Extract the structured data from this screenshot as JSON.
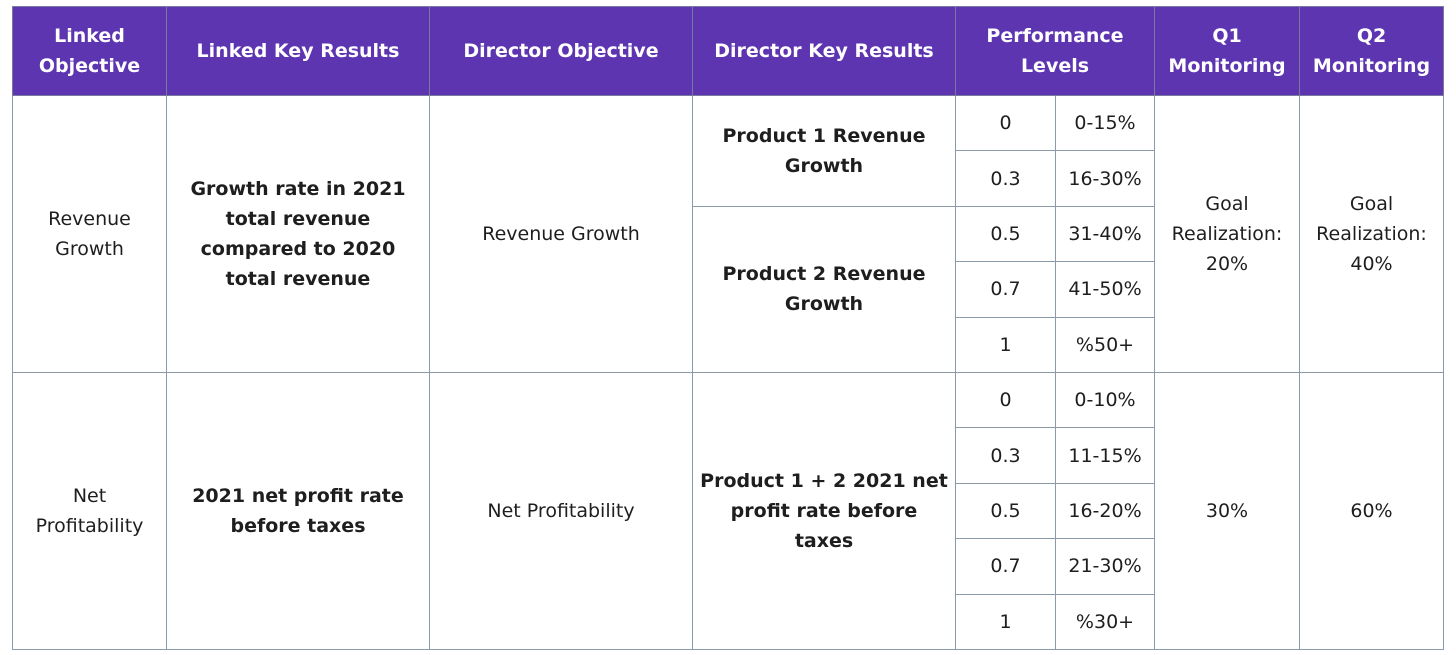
{
  "headers": {
    "linked_objective": "Linked Objective",
    "linked_key_results": "Linked Key Results",
    "director_objective": "Director Objective",
    "director_key_results": "Director Key Results",
    "performance_levels": "Performance Levels",
    "q1_monitoring": "Q1 Monitoring",
    "q2_monitoring": "Q2 Monitoring"
  },
  "rows": [
    {
      "linked_objective": "Revenue Growth",
      "linked_key_result": "Growth rate in 2021 total revenue compared to 2020 total revenue",
      "director_objective": "Revenue Growth",
      "director_key_results": [
        "Product 1 Revenue Growth",
        "Product 2 Revenue Growth"
      ],
      "levels": [
        {
          "score": "0",
          "range": "0-15%"
        },
        {
          "score": "0.3",
          "range": "16-30%"
        },
        {
          "score": "0.5",
          "range": "31-40%"
        },
        {
          "score": "0.7",
          "range": "41-50%"
        },
        {
          "score": "1",
          "range": "%50+"
        }
      ],
      "q1": "Goal Realization: 20%",
      "q2": "Goal Realization: 40%"
    },
    {
      "linked_objective": "Net Profitability",
      "linked_key_result": "2021 net profit rate before taxes",
      "director_objective": "Net Profitability",
      "director_key_results": [
        "Product 1 + 2 2021 net profit rate before taxes"
      ],
      "levels": [
        {
          "score": "0",
          "range": "0-10%"
        },
        {
          "score": "0.3",
          "range": "11-15%"
        },
        {
          "score": "0.5",
          "range": "16-20%"
        },
        {
          "score": "0.7",
          "range": "21-30%"
        },
        {
          "score": "1",
          "range": "%30+"
        }
      ],
      "q1": "30%",
      "q2": "60%"
    }
  ]
}
